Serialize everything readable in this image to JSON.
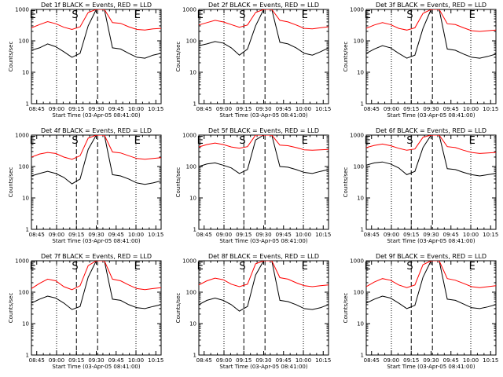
{
  "shared": {
    "xlabel": "Start Time (03-Apr-05 08:41:00)",
    "ylabel": "Counts/sec",
    "x_ticks": [
      "08:45",
      "09:00",
      "09:15",
      "09:30",
      "09:45",
      "10:00",
      "10:15"
    ],
    "y_ticks": [
      "1",
      "10",
      "100",
      "1000"
    ],
    "markers": [
      "E",
      "S",
      "E"
    ]
  },
  "colors": {
    "events": "#000000",
    "lld": "#ff0000",
    "background": "#ffffff"
  },
  "chart_data": [
    {
      "type": "line",
      "title": "Det 1f BLACK = Events, RED = LLD",
      "xlabel": "Start Time (03-Apr-05 08:41:00)",
      "ylabel": "Counts/sec",
      "y_scale": "log",
      "ylim": [
        1,
        1000
      ],
      "x_range": [
        "08:41",
        "10:19"
      ],
      "dotted_lines": [
        "09:00",
        "10:00"
      ],
      "dashed_lines": [
        "09:15",
        "09:31"
      ],
      "series": [
        {
          "name": "Events",
          "color": "#000000",
          "values": [
            50,
            60,
            80,
            65,
            45,
            30,
            40,
            300,
            1000,
            1000,
            60,
            55,
            40,
            30,
            28,
            35,
            40
          ]
        },
        {
          "name": "LLD",
          "color": "#ff0000",
          "values": [
            260,
            330,
            410,
            350,
            270,
            230,
            280,
            800,
            1000,
            1000,
            380,
            360,
            280,
            230,
            220,
            240,
            250
          ]
        }
      ]
    },
    {
      "type": "line",
      "title": "Det 2f BLACK = Events, RED = LLD",
      "xlabel": "Start Time (03-Apr-05 08:41:00)",
      "ylabel": "Counts/sec",
      "y_scale": "log",
      "ylim": [
        1,
        1000
      ],
      "x_range": [
        "08:41",
        "10:19"
      ],
      "dotted_lines": [
        "09:00",
        "10:00"
      ],
      "dashed_lines": [
        "09:15",
        "09:31"
      ],
      "series": [
        {
          "name": "Events",
          "color": "#000000",
          "values": [
            70,
            80,
            95,
            85,
            60,
            35,
            55,
            300,
            1000,
            1000,
            90,
            80,
            60,
            40,
            35,
            45,
            60
          ]
        },
        {
          "name": "LLD",
          "color": "#ff0000",
          "values": [
            320,
            380,
            450,
            400,
            330,
            270,
            320,
            800,
            1000,
            1000,
            450,
            400,
            320,
            250,
            240,
            260,
            280
          ]
        }
      ]
    },
    {
      "type": "line",
      "title": "Det 3f BLACK = Events, RED = LLD",
      "xlabel": "Start Time (03-Apr-05 08:41:00)",
      "ylabel": "Counts/sec",
      "y_scale": "log",
      "ylim": [
        1,
        1000
      ],
      "x_range": [
        "08:41",
        "10:19"
      ],
      "dotted_lines": [
        "09:00",
        "10:00"
      ],
      "dashed_lines": [
        "09:15",
        "09:31"
      ],
      "series": [
        {
          "name": "Events",
          "color": "#000000",
          "values": [
            40,
            55,
            70,
            60,
            40,
            28,
            35,
            250,
            1000,
            1000,
            55,
            50,
            38,
            30,
            28,
            32,
            38
          ]
        },
        {
          "name": "LLD",
          "color": "#ff0000",
          "values": [
            250,
            320,
            380,
            330,
            250,
            220,
            260,
            750,
            1000,
            1000,
            350,
            330,
            260,
            210,
            200,
            210,
            220
          ]
        }
      ]
    },
    {
      "type": "line",
      "title": "Det 4f BLACK = Events, RED = LLD",
      "xlabel": "Start Time (03-Apr-05 08:41:00)",
      "ylabel": "Counts/sec",
      "y_scale": "log",
      "ylim": [
        1,
        1000
      ],
      "x_range": [
        "08:41",
        "10:19"
      ],
      "dotted_lines": [
        "09:00",
        "10:00"
      ],
      "dashed_lines": [
        "09:15",
        "09:31"
      ],
      "series": [
        {
          "name": "Events",
          "color": "#000000",
          "values": [
            50,
            60,
            70,
            60,
            45,
            28,
            40,
            350,
            1000,
            1000,
            55,
            50,
            40,
            30,
            27,
            30,
            35
          ]
        },
        {
          "name": "LLD",
          "color": "#ff0000",
          "values": [
            200,
            250,
            280,
            260,
            200,
            170,
            220,
            800,
            1000,
            1000,
            290,
            270,
            220,
            180,
            170,
            180,
            190
          ]
        }
      ]
    },
    {
      "type": "line",
      "title": "Det 5f BLACK = Events, RED = LLD",
      "xlabel": "Start Time (03-Apr-05 08:41:00)",
      "ylabel": "Counts/sec",
      "y_scale": "log",
      "ylim": [
        1,
        1000
      ],
      "x_range": [
        "08:41",
        "10:19"
      ],
      "dotted_lines": [
        "09:00",
        "10:00"
      ],
      "dashed_lines": [
        "09:15",
        "09:31"
      ],
      "series": [
        {
          "name": "Events",
          "color": "#000000",
          "values": [
            100,
            120,
            130,
            110,
            90,
            60,
            80,
            700,
            1000,
            1000,
            100,
            95,
            80,
            65,
            60,
            70,
            80
          ]
        },
        {
          "name": "LLD",
          "color": "#ff0000",
          "values": [
            420,
            500,
            560,
            500,
            420,
            380,
            430,
            1000,
            1000,
            1000,
            480,
            460,
            400,
            340,
            330,
            340,
            350
          ]
        }
      ]
    },
    {
      "type": "line",
      "title": "Det 6f BLACK = Events, RED = LLD",
      "xlabel": "Start Time (03-Apr-05 08:41:00)",
      "ylabel": "Counts/sec",
      "y_scale": "log",
      "ylim": [
        1,
        1000
      ],
      "x_range": [
        "08:41",
        "10:19"
      ],
      "dotted_lines": [
        "09:00",
        "10:00"
      ],
      "dashed_lines": [
        "09:15",
        "09:31"
      ],
      "series": [
        {
          "name": "Events",
          "color": "#000000",
          "values": [
            110,
            130,
            140,
            120,
            90,
            55,
            70,
            400,
            1000,
            1000,
            85,
            80,
            65,
            55,
            50,
            55,
            60
          ]
        },
        {
          "name": "LLD",
          "color": "#ff0000",
          "values": [
            400,
            470,
            520,
            460,
            380,
            330,
            360,
            850,
            1000,
            1000,
            430,
            400,
            330,
            280,
            260,
            270,
            280
          ]
        }
      ]
    },
    {
      "type": "line",
      "title": "Det 7f BLACK = Events, RED = LLD",
      "xlabel": "Start Time (03-Apr-05 08:41:00)",
      "ylabel": "Counts/sec",
      "y_scale": "log",
      "ylim": [
        1,
        1000
      ],
      "x_range": [
        "08:41",
        "10:19"
      ],
      "dotted_lines": [
        "09:00",
        "10:00"
      ],
      "dashed_lines": [
        "09:15",
        "09:31"
      ],
      "series": [
        {
          "name": "Events",
          "color": "#000000",
          "values": [
            45,
            60,
            75,
            65,
            45,
            28,
            35,
            300,
            1000,
            1000,
            60,
            55,
            40,
            32,
            30,
            35,
            40
          ]
        },
        {
          "name": "LLD",
          "color": "#ff0000",
          "values": [
            130,
            190,
            260,
            230,
            150,
            120,
            160,
            700,
            1000,
            1000,
            260,
            230,
            170,
            130,
            120,
            130,
            140
          ]
        }
      ]
    },
    {
      "type": "line",
      "title": "Det 8f BLACK = Events, RED = LLD",
      "xlabel": "Start Time (03-Apr-05 08:41:00)",
      "ylabel": "Counts/sec",
      "y_scale": "log",
      "ylim": [
        1,
        1000
      ],
      "x_range": [
        "08:41",
        "10:19"
      ],
      "dotted_lines": [
        "09:00",
        "10:00"
      ],
      "dashed_lines": [
        "09:15",
        "09:31"
      ],
      "series": [
        {
          "name": "Events",
          "color": "#000000",
          "values": [
            40,
            55,
            65,
            55,
            40,
            25,
            35,
            350,
            1000,
            1000,
            55,
            50,
            40,
            30,
            28,
            32,
            40
          ]
        },
        {
          "name": "LLD",
          "color": "#ff0000",
          "values": [
            170,
            230,
            280,
            250,
            180,
            150,
            180,
            800,
            1000,
            1000,
            290,
            260,
            200,
            160,
            150,
            160,
            170
          ]
        }
      ]
    },
    {
      "type": "line",
      "title": "Det 9f BLACK = Events, RED = LLD",
      "xlabel": "Start Time (03-Apr-05 08:41:00)",
      "ylabel": "Counts/sec",
      "y_scale": "log",
      "ylim": [
        1,
        1000
      ],
      "x_range": [
        "08:41",
        "10:19"
      ],
      "dotted_lines": [
        "09:00",
        "10:00"
      ],
      "dashed_lines": [
        "09:15",
        "09:31"
      ],
      "series": [
        {
          "name": "Events",
          "color": "#000000",
          "values": [
            45,
            60,
            75,
            65,
            45,
            30,
            38,
            300,
            1000,
            1000,
            60,
            55,
            42,
            32,
            30,
            34,
            40
          ]
        },
        {
          "name": "LLD",
          "color": "#ff0000",
          "values": [
            150,
            210,
            270,
            240,
            170,
            140,
            170,
            750,
            1000,
            1000,
            270,
            240,
            190,
            150,
            140,
            150,
            160
          ]
        }
      ]
    }
  ]
}
